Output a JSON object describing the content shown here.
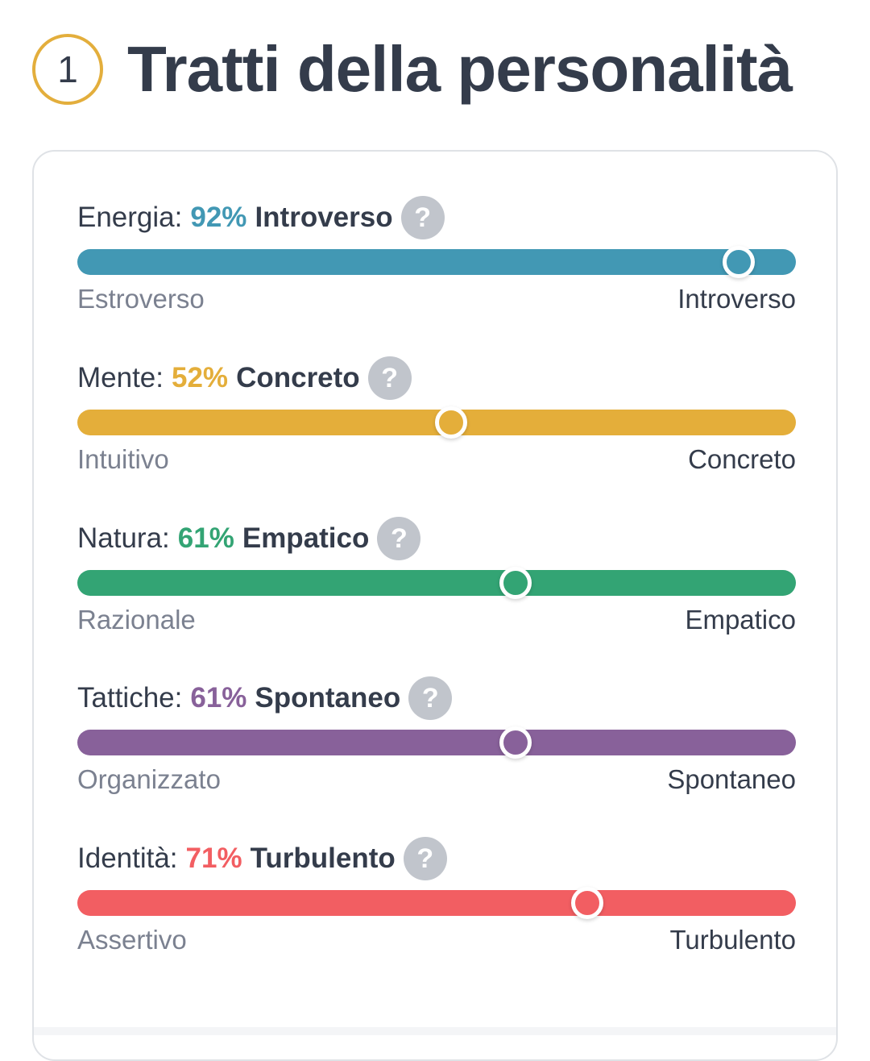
{
  "header": {
    "step": "1",
    "title": "Tratti della personalità"
  },
  "traits": [
    {
      "name": "Energia:",
      "percent": "92%",
      "value": 92,
      "trait": "Introverso",
      "left": "Estroverso",
      "right": "Introverso",
      "color": "#4298b4"
    },
    {
      "name": "Mente:",
      "percent": "52%",
      "value": 52,
      "trait": "Concreto",
      "left": "Intuitivo",
      "right": "Concreto",
      "color": "#e4ae3a"
    },
    {
      "name": "Natura:",
      "percent": "61%",
      "value": 61,
      "trait": "Empatico",
      "left": "Razionale",
      "right": "Empatico",
      "color": "#33a474"
    },
    {
      "name": "Tattiche:",
      "percent": "61%",
      "value": 61,
      "trait": "Spontaneo",
      "left": "Organizzato",
      "right": "Spontaneo",
      "color": "#88619a"
    },
    {
      "name": "Identità:",
      "percent": "71%",
      "value": 71,
      "trait": "Turbulento",
      "left": "Assertivo",
      "right": "Turbulento",
      "color": "#f25e62"
    }
  ],
  "help_icon": {
    "glyph": "?",
    "icon": "question-icon"
  }
}
